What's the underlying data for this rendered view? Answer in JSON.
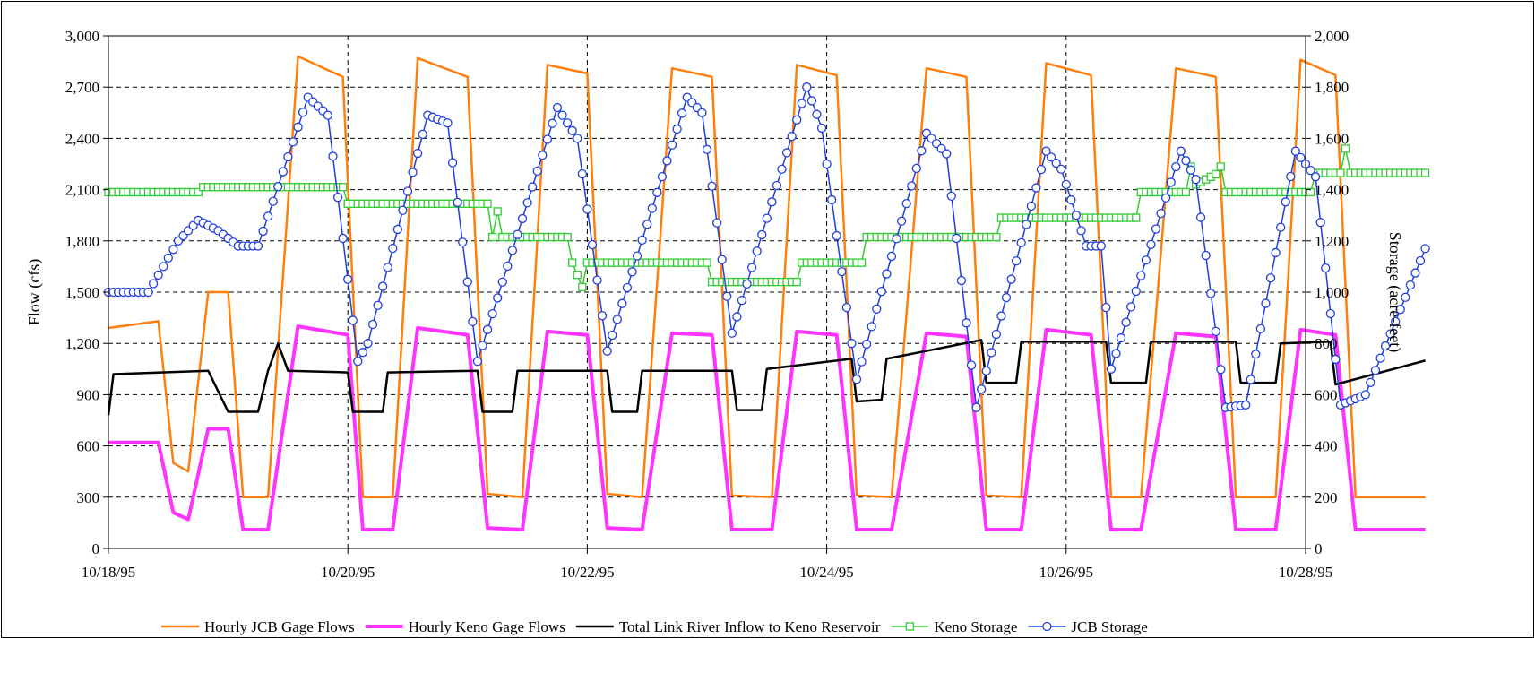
{
  "chart_data": {
    "type": "line",
    "title": "",
    "xlabel": "",
    "ylabel": "Flow (cfs)",
    "y2label": "Storage (acre-feet)",
    "xrange_days": [
      "10/18/95",
      "10/28/95"
    ],
    "x_ticks": [
      "10/18/95",
      "10/20/95",
      "10/22/95",
      "10/24/95",
      "10/26/95",
      "10/28/95"
    ],
    "ylim": [
      0,
      3000
    ],
    "y_ticks": [
      "0",
      "300",
      "600",
      "900",
      "1,200",
      "1,500",
      "1,800",
      "2,100",
      "2,400",
      "2,700",
      "3,000"
    ],
    "y2lim": [
      0,
      2000
    ],
    "y2_ticks": [
      "0",
      "200",
      "400",
      "600",
      "800",
      "1,000",
      "1,200",
      "1,400",
      "1,600",
      "1,800",
      "2,000"
    ],
    "grid": true,
    "legend_placement": "bottom",
    "series": [
      {
        "name": "Hourly JCB Gage Flows",
        "axis": "left",
        "color": "#ff7f0e",
        "style": "line",
        "points": [
          [
            "10/18/95 00:00",
            1290
          ],
          [
            "10/18/95 10:00",
            1330
          ],
          [
            "10/18/95 13:00",
            500
          ],
          [
            "10/18/95 16:00",
            450
          ],
          [
            "10/18/95 20:00",
            1500
          ],
          [
            "10/19/95 00:00",
            1500
          ],
          [
            "10/19/95 03:00",
            300
          ],
          [
            "10/19/95 08:00",
            300
          ],
          [
            "10/19/95 14:00",
            2880
          ],
          [
            "10/19/95 23:00",
            2760
          ],
          [
            "10/20/95 03:00",
            300
          ],
          [
            "10/20/95 09:00",
            300
          ],
          [
            "10/20/95 14:00",
            2870
          ],
          [
            "10/21/95 00:00",
            2760
          ],
          [
            "10/21/95 04:00",
            320
          ],
          [
            "10/21/95 11:00",
            300
          ],
          [
            "10/21/95 16:00",
            2830
          ],
          [
            "10/22/95 00:00",
            2780
          ],
          [
            "10/22/95 04:00",
            320
          ],
          [
            "10/22/95 11:00",
            300
          ],
          [
            "10/22/95 17:00",
            2810
          ],
          [
            "10/23/95 01:00",
            2760
          ],
          [
            "10/23/95 05:00",
            310
          ],
          [
            "10/23/95 13:00",
            300
          ],
          [
            "10/23/95 18:00",
            2830
          ],
          [
            "10/24/95 02:00",
            2770
          ],
          [
            "10/24/95 06:00",
            310
          ],
          [
            "10/24/95 13:00",
            300
          ],
          [
            "10/24/95 20:00",
            2810
          ],
          [
            "10/25/95 04:00",
            2760
          ],
          [
            "10/25/95 08:00",
            310
          ],
          [
            "10/25/95 15:00",
            300
          ],
          [
            "10/25/95 20:00",
            2840
          ],
          [
            "10/26/95 05:00",
            2770
          ],
          [
            "10/26/95 09:00",
            300
          ],
          [
            "10/26/95 15:00",
            300
          ],
          [
            "10/26/95 22:00",
            2810
          ],
          [
            "10/27/95 06:00",
            2760
          ],
          [
            "10/27/95 10:00",
            300
          ],
          [
            "10/27/95 18:00",
            300
          ],
          [
            "10/27/95 23:00",
            2860
          ],
          [
            "10/28/95 06:00",
            2770
          ],
          [
            "10/28/95 10:00",
            300
          ],
          [
            "10/28/95 24:00",
            300
          ]
        ]
      },
      {
        "name": "Hourly Keno Gage Flows",
        "axis": "left",
        "color": "#ff33ff",
        "style": "thick-line",
        "points": [
          [
            "10/18/95 00:00",
            620
          ],
          [
            "10/18/95 10:00",
            620
          ],
          [
            "10/18/95 13:00",
            210
          ],
          [
            "10/18/95 16:00",
            170
          ],
          [
            "10/18/95 20:00",
            700
          ],
          [
            "10/19/95 00:00",
            700
          ],
          [
            "10/19/95 03:00",
            110
          ],
          [
            "10/19/95 08:00",
            110
          ],
          [
            "10/19/95 14:00",
            1300
          ],
          [
            "10/20/95 00:00",
            1250
          ],
          [
            "10/20/95 03:00",
            110
          ],
          [
            "10/20/95 09:00",
            110
          ],
          [
            "10/20/95 14:00",
            1290
          ],
          [
            "10/21/95 00:00",
            1250
          ],
          [
            "10/21/95 04:00",
            120
          ],
          [
            "10/21/95 11:00",
            110
          ],
          [
            "10/21/95 16:00",
            1270
          ],
          [
            "10/22/95 00:00",
            1250
          ],
          [
            "10/22/95 04:00",
            120
          ],
          [
            "10/22/95 11:00",
            110
          ],
          [
            "10/22/95 17:00",
            1260
          ],
          [
            "10/23/95 01:00",
            1250
          ],
          [
            "10/23/95 05:00",
            110
          ],
          [
            "10/23/95 13:00",
            110
          ],
          [
            "10/23/95 18:00",
            1270
          ],
          [
            "10/24/95 02:00",
            1250
          ],
          [
            "10/24/95 06:00",
            110
          ],
          [
            "10/24/95 13:00",
            110
          ],
          [
            "10/24/95 20:00",
            1260
          ],
          [
            "10/25/95 04:00",
            1240
          ],
          [
            "10/25/95 08:00",
            110
          ],
          [
            "10/25/95 15:00",
            110
          ],
          [
            "10/25/95 20:00",
            1280
          ],
          [
            "10/26/95 05:00",
            1250
          ],
          [
            "10/26/95 09:00",
            110
          ],
          [
            "10/26/95 15:00",
            110
          ],
          [
            "10/26/95 22:00",
            1260
          ],
          [
            "10/27/95 06:00",
            1240
          ],
          [
            "10/27/95 10:00",
            110
          ],
          [
            "10/27/95 18:00",
            110
          ],
          [
            "10/27/95 23:00",
            1280
          ],
          [
            "10/28/95 06:00",
            1250
          ],
          [
            "10/28/95 10:00",
            110
          ],
          [
            "10/28/95 24:00",
            110
          ]
        ]
      },
      {
        "name": "Total Link River Inflow to Keno Reservoir",
        "axis": "left",
        "color": "#000000",
        "style": "line",
        "points": [
          [
            "10/18/95 00:00",
            780
          ],
          [
            "10/18/95 01:00",
            1020
          ],
          [
            "10/18/95 20:00",
            1040
          ],
          [
            "10/19/95 00:00",
            800
          ],
          [
            "10/19/95 06:00",
            800
          ],
          [
            "10/19/95 08:00",
            1040
          ],
          [
            "10/19/95 10:00",
            1200
          ],
          [
            "10/19/95 12:00",
            1040
          ],
          [
            "10/20/95 00:00",
            1030
          ],
          [
            "10/20/95 01:00",
            800
          ],
          [
            "10/20/95 07:00",
            800
          ],
          [
            "10/20/95 08:00",
            1030
          ],
          [
            "10/21/95 02:00",
            1040
          ],
          [
            "10/21/95 03:00",
            800
          ],
          [
            "10/21/95 09:00",
            800
          ],
          [
            "10/21/95 10:00",
            1040
          ],
          [
            "10/22/95 04:00",
            1040
          ],
          [
            "10/22/95 05:00",
            800
          ],
          [
            "10/22/95 10:00",
            800
          ],
          [
            "10/22/95 11:00",
            1040
          ],
          [
            "10/23/95 05:00",
            1040
          ],
          [
            "10/23/95 06:00",
            810
          ],
          [
            "10/23/95 11:00",
            810
          ],
          [
            "10/23/95 12:00",
            1050
          ],
          [
            "10/24/95 05:00",
            1110
          ],
          [
            "10/24/95 06:00",
            860
          ],
          [
            "10/24/95 11:00",
            870
          ],
          [
            "10/24/95 12:00",
            1110
          ],
          [
            "10/25/95 07:00",
            1220
          ],
          [
            "10/25/95 08:00",
            970
          ],
          [
            "10/25/95 14:00",
            970
          ],
          [
            "10/25/95 15:00",
            1210
          ],
          [
            "10/26/95 08:00",
            1210
          ],
          [
            "10/26/95 09:00",
            970
          ],
          [
            "10/26/95 16:00",
            970
          ],
          [
            "10/26/95 17:00",
            1210
          ],
          [
            "10/27/95 10:00",
            1210
          ],
          [
            "10/27/95 11:00",
            970
          ],
          [
            "10/27/95 18:00",
            970
          ],
          [
            "10/27/95 19:00",
            1200
          ],
          [
            "10/28/95 05:00",
            1210
          ],
          [
            "10/28/95 06:00",
            960
          ],
          [
            "10/28/95 24:00",
            1100
          ]
        ]
      },
      {
        "name": "Keno Storage",
        "axis": "right",
        "color": "#33cc33",
        "style": "line-square-markers",
        "points": [
          [
            "10/18/95 00:00",
            1390
          ],
          [
            "10/18/95 18:00",
            1390
          ],
          [
            "10/18/95 19:00",
            1410
          ],
          [
            "10/19/95 23:00",
            1410
          ],
          [
            "10/20/95 00:00",
            1345
          ],
          [
            "10/21/95 04:00",
            1345
          ],
          [
            "10/21/95 05:00",
            1215
          ],
          [
            "10/21/95 06:00",
            1315
          ],
          [
            "10/21/95 07:00",
            1215
          ],
          [
            "10/21/95 20:00",
            1215
          ],
          [
            "10/21/95 21:00",
            1115
          ],
          [
            "10/21/95 23:00",
            1020
          ],
          [
            "10/22/95 00:00",
            1115
          ],
          [
            "10/23/95 00:00",
            1115
          ],
          [
            "10/23/95 01:00",
            1040
          ],
          [
            "10/23/95 18:00",
            1040
          ],
          [
            "10/23/95 19:00",
            1115
          ],
          [
            "10/24/95 07:00",
            1115
          ],
          [
            "10/24/95 08:00",
            1215
          ],
          [
            "10/25/95 10:00",
            1215
          ],
          [
            "10/25/95 11:00",
            1290
          ],
          [
            "10/26/95 14:00",
            1290
          ],
          [
            "10/26/95 15:00",
            1390
          ],
          [
            "10/27/95 00:00",
            1390
          ],
          [
            "10/27/95 01:00",
            1490
          ],
          [
            "10/27/95 02:00",
            1420
          ],
          [
            "10/27/95 06:00",
            1460
          ],
          [
            "10/27/95 07:00",
            1490
          ],
          [
            "10/27/95 08:00",
            1390
          ],
          [
            "10/28/95 01:00",
            1390
          ],
          [
            "10/28/95 02:00",
            1465
          ],
          [
            "10/28/95 07:00",
            1465
          ],
          [
            "10/28/95 08:00",
            1560
          ],
          [
            "10/28/95 09:00",
            1465
          ],
          [
            "10/28/95 24:00",
            1465
          ]
        ]
      },
      {
        "name": "JCB Storage",
        "axis": "right",
        "color": "#1f3fdd",
        "style": "line-circle-markers",
        "points": [
          [
            "10/18/95 00:00",
            1000
          ],
          [
            "10/18/95 08:00",
            1000
          ],
          [
            "10/18/95 14:00",
            1200
          ],
          [
            "10/18/95 18:00",
            1280
          ],
          [
            "10/18/95 22:00",
            1240
          ],
          [
            "10/19/95 02:00",
            1180
          ],
          [
            "10/19/95 06:00",
            1180
          ],
          [
            "10/19/95 16:00",
            1760
          ],
          [
            "10/19/95 20:00",
            1690
          ],
          [
            "10/20/95 02:00",
            730
          ],
          [
            "10/20/95 04:00",
            800
          ],
          [
            "10/20/95 16:00",
            1690
          ],
          [
            "10/20/95 20:00",
            1660
          ],
          [
            "10/21/95 02:00",
            730
          ],
          [
            "10/21/95 18:00",
            1720
          ],
          [
            "10/21/95 22:00",
            1600
          ],
          [
            "10/22/95 04:00",
            770
          ],
          [
            "10/22/95 20:00",
            1760
          ],
          [
            "10/22/95 23:00",
            1700
          ],
          [
            "10/23/95 05:00",
            840
          ],
          [
            "10/23/95 20:00",
            1800
          ],
          [
            "10/23/95 23:00",
            1640
          ],
          [
            "10/24/95 06:00",
            660
          ],
          [
            "10/24/95 20:00",
            1620
          ],
          [
            "10/25/95 00:00",
            1540
          ],
          [
            "10/25/95 06:00",
            550
          ],
          [
            "10/25/95 20:00",
            1550
          ],
          [
            "10/25/95 23:00",
            1480
          ],
          [
            "10/26/95 04:00",
            1180
          ],
          [
            "10/26/95 07:00",
            1180
          ],
          [
            "10/26/95 09:00",
            700
          ],
          [
            "10/26/95 23:00",
            1550
          ],
          [
            "10/27/95 02:00",
            1440
          ],
          [
            "10/27/95 08:00",
            550
          ],
          [
            "10/27/95 12:00",
            560
          ],
          [
            "10/27/95 22:00",
            1550
          ],
          [
            "10/28/95 02:00",
            1450
          ],
          [
            "10/28/95 07:00",
            560
          ],
          [
            "10/28/95 12:00",
            600
          ],
          [
            "10/28/95 24:00",
            1170
          ]
        ]
      }
    ]
  }
}
